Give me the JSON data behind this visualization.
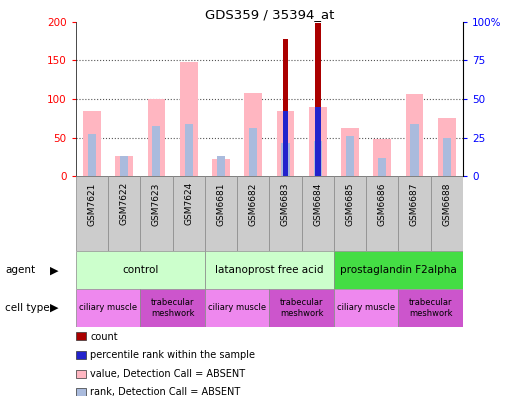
{
  "title": "GDS359 / 35394_at",
  "samples": [
    "GSM7621",
    "GSM7622",
    "GSM7623",
    "GSM7624",
    "GSM6681",
    "GSM6682",
    "GSM6683",
    "GSM6684",
    "GSM6685",
    "GSM6686",
    "GSM6687",
    "GSM6688"
  ],
  "pink_values": [
    85,
    26,
    100,
    148,
    22,
    108,
    85,
    90,
    62,
    48,
    107,
    75
  ],
  "lavender_values": [
    55,
    26,
    65,
    68,
    26,
    63,
    43,
    46,
    52,
    24,
    67,
    50
  ],
  "red_values": [
    0,
    0,
    0,
    0,
    0,
    0,
    178,
    198,
    0,
    0,
    0,
    0
  ],
  "blue_values": [
    0,
    0,
    0,
    0,
    0,
    0,
    84,
    90,
    0,
    0,
    0,
    0
  ],
  "ylim_left": [
    0,
    200
  ],
  "ylim_right": [
    0,
    100
  ],
  "yticks_left": [
    0,
    50,
    100,
    150,
    200
  ],
  "yticks_right": [
    0,
    25,
    50,
    75,
    100
  ],
  "ytick_labels_right": [
    "0",
    "25",
    "50",
    "75",
    "100%"
  ],
  "agent_groups": [
    {
      "label": "control",
      "start": 0,
      "end": 4,
      "color": "#CCFFCC"
    },
    {
      "label": "latanoprost free acid",
      "start": 4,
      "end": 8,
      "color": "#CCFFCC"
    },
    {
      "label": "prostaglandin F2alpha",
      "start": 8,
      "end": 12,
      "color": "#44DD44"
    }
  ],
  "cell_type_groups": [
    {
      "label": "ciliary muscle",
      "start": 0,
      "end": 2,
      "color": "#EE88EE"
    },
    {
      "label": "trabecular\nmeshwork",
      "start": 2,
      "end": 4,
      "color": "#CC55CC"
    },
    {
      "label": "ciliary muscle",
      "start": 4,
      "end": 6,
      "color": "#EE88EE"
    },
    {
      "label": "trabecular\nmeshwork",
      "start": 6,
      "end": 8,
      "color": "#CC55CC"
    },
    {
      "label": "ciliary muscle",
      "start": 8,
      "end": 10,
      "color": "#EE88EE"
    },
    {
      "label": "trabecular\nmeshwork",
      "start": 10,
      "end": 12,
      "color": "#CC55CC"
    }
  ],
  "pink_color": "#FFB6C1",
  "lavender_color": "#AABBDD",
  "red_color": "#AA0000",
  "blue_color": "#2222CC",
  "grid_color": "#888888",
  "sample_bg": "#CCCCCC",
  "legend_items": [
    {
      "color": "#AA0000",
      "label": "count"
    },
    {
      "color": "#2222CC",
      "label": "percentile rank within the sample"
    },
    {
      "color": "#FFB6C1",
      "label": "value, Detection Call = ABSENT"
    },
    {
      "color": "#AABBDD",
      "label": "rank, Detection Call = ABSENT"
    }
  ]
}
